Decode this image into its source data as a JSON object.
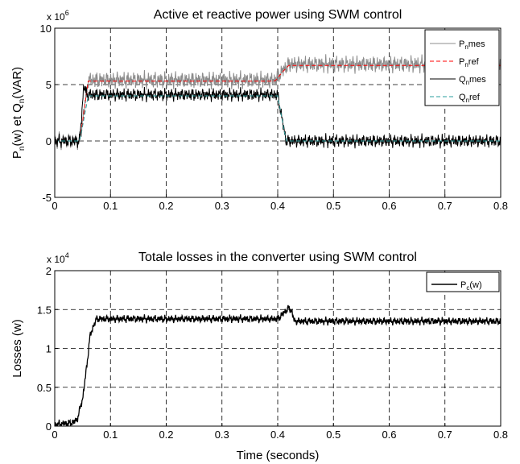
{
  "chart_data": [
    {
      "type": "line",
      "title": "Active et reactive power using SWM control",
      "ylabel_parts": [
        "P",
        "n",
        "(w) et Q",
        "n",
        "(VAR)"
      ],
      "xlabel": "",
      "y_multiplier": "x 10",
      "y_multiplier_exp": "6",
      "xlim": [
        0,
        0.8
      ],
      "ylim": [
        -5,
        10
      ],
      "x_ticks": [
        "0",
        "0.1",
        "0.2",
        "0.3",
        "0.4",
        "0.5",
        "0.6",
        "0.7",
        "0.8"
      ],
      "y_ticks": [
        "-5",
        "0",
        "5",
        "10"
      ],
      "grid": true,
      "legend_position": "top-right",
      "series": [
        {
          "name_parts": [
            "P",
            "n",
            "mes"
          ],
          "color": "#8c8c8c",
          "style": "solid",
          "oscillation": 0.9,
          "x": [
            0,
            0.045,
            0.06,
            0.395,
            0.41,
            0.42,
            0.8
          ],
          "y": [
            0,
            0,
            5.4,
            5.4,
            6.3,
            6.8,
            6.8
          ]
        },
        {
          "name_parts": [
            "P",
            "n",
            "ref"
          ],
          "color": "#ff0000",
          "style": "dashed",
          "oscillation": 0,
          "x": [
            0,
            0.045,
            0.06,
            0.395,
            0.41,
            0.42,
            0.8
          ],
          "y": [
            0,
            0,
            5.3,
            5.3,
            6.2,
            6.7,
            6.7
          ]
        },
        {
          "name_parts": [
            "Q",
            "n",
            "mes"
          ],
          "color": "#000000",
          "style": "solid",
          "oscillation": 0.7,
          "x": [
            0,
            0.045,
            0.052,
            0.058,
            0.4,
            0.415,
            0.8
          ],
          "y": [
            0,
            0,
            4.9,
            4.1,
            4.1,
            0,
            0
          ]
        },
        {
          "name_parts": [
            "Q",
            "n",
            "ref"
          ],
          "color": "#2a9d9d",
          "style": "dashed",
          "oscillation": 0,
          "x": [
            0,
            0.045,
            0.06,
            0.4,
            0.415,
            0.8
          ],
          "y": [
            0,
            0,
            4.0,
            4.0,
            0,
            0
          ]
        }
      ]
    },
    {
      "type": "line",
      "title": "Totale losses in the converter using SWM control",
      "ylabel": "Losses (w)",
      "xlabel": "Time (seconds)",
      "y_multiplier": "x 10",
      "y_multiplier_exp": "4",
      "xlim": [
        0,
        0.8
      ],
      "ylim": [
        0,
        2
      ],
      "x_ticks": [
        "0",
        "0.1",
        "0.2",
        "0.3",
        "0.4",
        "0.5",
        "0.6",
        "0.7",
        "0.8"
      ],
      "y_ticks": [
        "0",
        "0.5",
        "1",
        "1.5",
        "2"
      ],
      "grid": true,
      "legend_position": "top-right",
      "series": [
        {
          "name_parts": [
            "P",
            "c",
            "(w)"
          ],
          "color": "#000000",
          "style": "solid",
          "oscillation": 0.06,
          "x": [
            0,
            0.01,
            0.03,
            0.04,
            0.05,
            0.058,
            0.063,
            0.07,
            0.075,
            0.4,
            0.41,
            0.42,
            0.425,
            0.43,
            0.8
          ],
          "y": [
            0.02,
            0.03,
            0.04,
            0.08,
            0.35,
            0.8,
            1.15,
            1.3,
            1.38,
            1.38,
            1.45,
            1.52,
            1.48,
            1.35,
            1.35
          ]
        }
      ]
    }
  ]
}
